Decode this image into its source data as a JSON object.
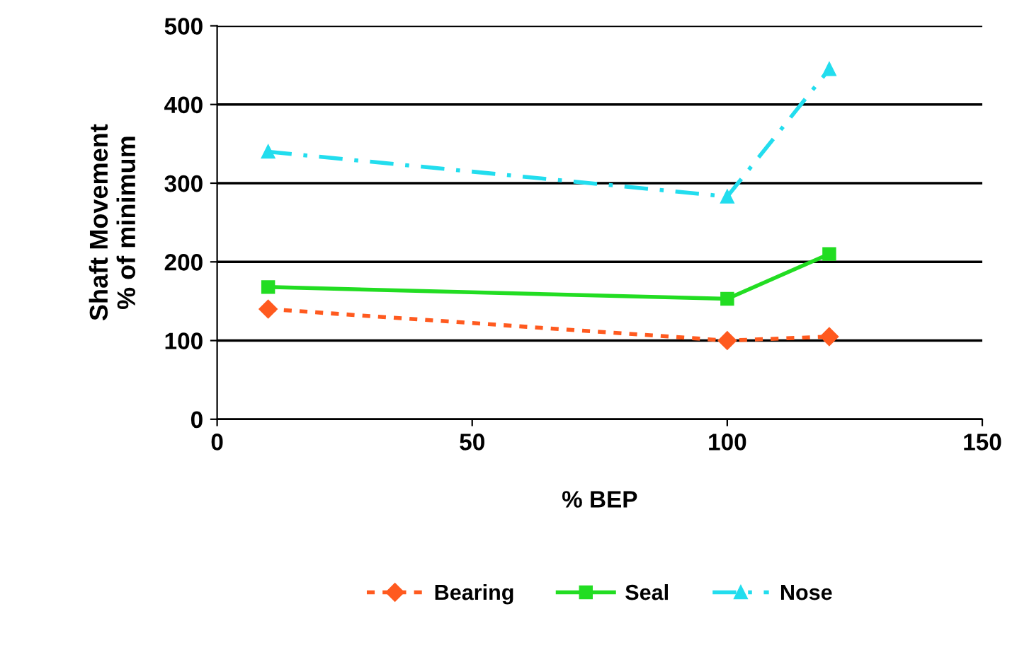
{
  "chart_data": {
    "type": "line",
    "xlabel": "% BEP",
    "ylabel": "Shaft Movement\n% of minimum",
    "x": [
      10,
      100,
      120
    ],
    "series": [
      {
        "name": "Bearing",
        "color": "#ff5a1f",
        "values": [
          140,
          100,
          105
        ],
        "marker": "diamond",
        "line_style": "dotted"
      },
      {
        "name": "Seal",
        "color": "#22dd22",
        "values": [
          168,
          153,
          210
        ],
        "marker": "square",
        "line_style": "solid"
      },
      {
        "name": "Nose",
        "color": "#22ddee",
        "values": [
          340,
          283,
          445
        ],
        "marker": "triangle",
        "line_style": "dashed"
      }
    ],
    "xlim": [
      0,
      150
    ],
    "xticks": [
      0,
      50,
      100,
      150
    ],
    "ylim": [
      0,
      500
    ],
    "yticks": [
      0,
      100,
      200,
      300,
      400,
      500
    ],
    "grid": "y",
    "legend": "bottom"
  }
}
